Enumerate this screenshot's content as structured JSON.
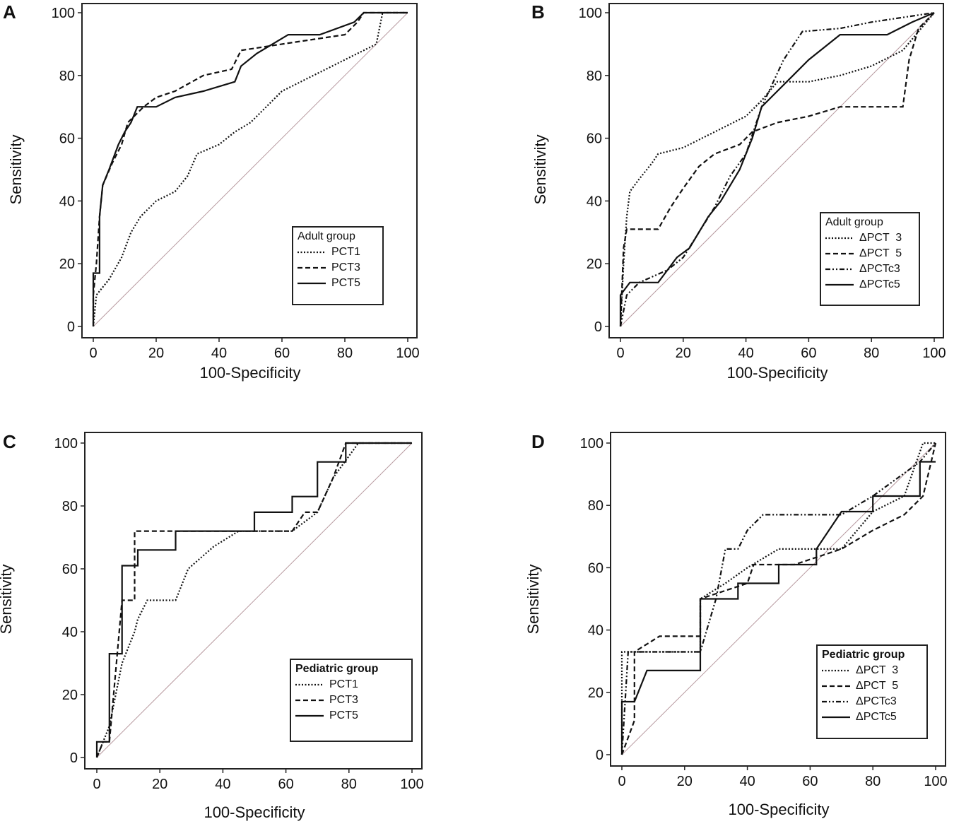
{
  "chart_data": [
    {
      "type": "line",
      "panel": "A",
      "xlabel": "100-Specificity",
      "ylabel": "Sensitivity",
      "xlim": [
        0,
        100
      ],
      "ylim": [
        0,
        100
      ],
      "xticks": [
        "0",
        "20",
        "40",
        "60",
        "80",
        "100"
      ],
      "yticks": [
        "0",
        "20",
        "40",
        "60",
        "80",
        "100"
      ],
      "legend_title": "Adult group",
      "legend_position": "bottom-right",
      "series": [
        {
          "name": "PCT1",
          "style": "dotted",
          "points": [
            [
              0,
              0
            ],
            [
              1,
              10
            ],
            [
              5,
              15
            ],
            [
              9,
              22
            ],
            [
              12,
              30
            ],
            [
              15,
              35
            ],
            [
              20,
              40
            ],
            [
              26,
              43
            ],
            [
              30,
              48
            ],
            [
              33,
              55
            ],
            [
              40,
              58
            ],
            [
              45,
              62
            ],
            [
              50,
              65
            ],
            [
              55,
              70
            ],
            [
              60,
              75
            ],
            [
              70,
              80
            ],
            [
              80,
              85
            ],
            [
              90,
              90
            ],
            [
              92,
              100
            ],
            [
              100,
              100
            ]
          ]
        },
        {
          "name": "PCT3",
          "style": "dashed",
          "points": [
            [
              0,
              0
            ],
            [
              0,
              10
            ],
            [
              1,
              20
            ],
            [
              2,
              35
            ],
            [
              3,
              45
            ],
            [
              6,
              52
            ],
            [
              9,
              58
            ],
            [
              11,
              65
            ],
            [
              16,
              70
            ],
            [
              20,
              73
            ],
            [
              26,
              75
            ],
            [
              35,
              80
            ],
            [
              44,
              82
            ],
            [
              47,
              88
            ],
            [
              60,
              90
            ],
            [
              80,
              93
            ],
            [
              84,
              97
            ],
            [
              86,
              100
            ],
            [
              100,
              100
            ]
          ]
        },
        {
          "name": "PCT5",
          "style": "solid",
          "points": [
            [
              0,
              0
            ],
            [
              0,
              17
            ],
            [
              2,
              17
            ],
            [
              2,
              35
            ],
            [
              3,
              45
            ],
            [
              5,
              50
            ],
            [
              8,
              58
            ],
            [
              10,
              62
            ],
            [
              12,
              65
            ],
            [
              14,
              70
            ],
            [
              20,
              70
            ],
            [
              26,
              73
            ],
            [
              35,
              75
            ],
            [
              45,
              78
            ],
            [
              47,
              83
            ],
            [
              52,
              87
            ],
            [
              57,
              90
            ],
            [
              62,
              93
            ],
            [
              72,
              93
            ],
            [
              83,
              97
            ],
            [
              86,
              100
            ],
            [
              100,
              100
            ]
          ]
        }
      ]
    },
    {
      "type": "line",
      "panel": "B",
      "xlabel": "100-Specificity",
      "ylabel": "Sensitivity",
      "xlim": [
        0,
        100
      ],
      "ylim": [
        0,
        100
      ],
      "xticks": [
        "0",
        "20",
        "40",
        "60",
        "80",
        "100"
      ],
      "yticks": [
        "0",
        "20",
        "40",
        "60",
        "80",
        "100"
      ],
      "legend_title": "Adult group",
      "legend_position": "bottom-right",
      "series": [
        {
          "name": "ΔPCT  3",
          "style": "dotted",
          "points": [
            [
              0,
              0
            ],
            [
              1,
              20
            ],
            [
              2,
              35
            ],
            [
              3,
              43
            ],
            [
              6,
              47
            ],
            [
              10,
              52
            ],
            [
              12,
              55
            ],
            [
              20,
              57
            ],
            [
              30,
              62
            ],
            [
              40,
              67
            ],
            [
              45,
              72
            ],
            [
              50,
              78
            ],
            [
              60,
              78
            ],
            [
              70,
              80
            ],
            [
              80,
              83
            ],
            [
              90,
              88
            ],
            [
              100,
              100
            ]
          ]
        },
        {
          "name": "ΔPCT  5",
          "style": "dashed",
          "points": [
            [
              0,
              0
            ],
            [
              1,
              25
            ],
            [
              2,
              31
            ],
            [
              12,
              31
            ],
            [
              16,
              38
            ],
            [
              20,
              44
            ],
            [
              25,
              51
            ],
            [
              30,
              55
            ],
            [
              38,
              58
            ],
            [
              42,
              62
            ],
            [
              50,
              65
            ],
            [
              60,
              67
            ],
            [
              70,
              70
            ],
            [
              90,
              70
            ],
            [
              92,
              85
            ],
            [
              95,
              95
            ],
            [
              100,
              100
            ]
          ]
        },
        {
          "name": "ΔPCTc3",
          "style": "dashdot",
          "points": [
            [
              0,
              0
            ],
            [
              2,
              10
            ],
            [
              6,
              14
            ],
            [
              15,
              18
            ],
            [
              20,
              22
            ],
            [
              25,
              30
            ],
            [
              30,
              38
            ],
            [
              35,
              48
            ],
            [
              40,
              55
            ],
            [
              45,
              70
            ],
            [
              52,
              85
            ],
            [
              58,
              94
            ],
            [
              70,
              95
            ],
            [
              80,
              97
            ],
            [
              100,
              100
            ]
          ]
        },
        {
          "name": "ΔPCTc5",
          "style": "solid",
          "points": [
            [
              0,
              0
            ],
            [
              0,
              10
            ],
            [
              3,
              14
            ],
            [
              12,
              14
            ],
            [
              18,
              22
            ],
            [
              22,
              25
            ],
            [
              28,
              35
            ],
            [
              32,
              40
            ],
            [
              38,
              50
            ],
            [
              42,
              60
            ],
            [
              45,
              70
            ],
            [
              50,
              75
            ],
            [
              55,
              80
            ],
            [
              60,
              85
            ],
            [
              70,
              93
            ],
            [
              85,
              93
            ],
            [
              93,
              97
            ],
            [
              100,
              100
            ]
          ]
        }
      ]
    },
    {
      "type": "line",
      "panel": "C",
      "xlabel": "100-Specificity",
      "ylabel": "Sensitivity",
      "xlim": [
        0,
        100
      ],
      "ylim": [
        0,
        100
      ],
      "xticks": [
        "0",
        "20",
        "40",
        "60",
        "80",
        "100"
      ],
      "yticks": [
        "0",
        "20",
        "40",
        "60",
        "80",
        "100"
      ],
      "legend_title": "Pediatric group",
      "legend_position": "bottom-right",
      "series": [
        {
          "name": "PCT1",
          "style": "dotted",
          "points": [
            [
              0,
              0
            ],
            [
              4,
              10
            ],
            [
              8,
              30
            ],
            [
              12,
              40
            ],
            [
              13,
              44
            ],
            [
              16,
              50
            ],
            [
              25,
              50
            ],
            [
              29,
              60
            ],
            [
              37,
              67
            ],
            [
              45,
              72
            ],
            [
              62,
              72
            ],
            [
              70,
              78
            ],
            [
              75,
              89
            ],
            [
              83,
              100
            ],
            [
              100,
              100
            ]
          ]
        },
        {
          "name": "PCT3",
          "style": "dashed",
          "points": [
            [
              0,
              0
            ],
            [
              2,
              5
            ],
            [
              4,
              5
            ],
            [
              8,
              50
            ],
            [
              12,
              50
            ],
            [
              12,
              72
            ],
            [
              62,
              72
            ],
            [
              66,
              78
            ],
            [
              70,
              78
            ],
            [
              75,
              89
            ],
            [
              79,
              100
            ],
            [
              100,
              100
            ]
          ]
        },
        {
          "name": "PCT5",
          "style": "solid",
          "points": [
            [
              0,
              0
            ],
            [
              0,
              5
            ],
            [
              4,
              5
            ],
            [
              4,
              33
            ],
            [
              8,
              33
            ],
            [
              8,
              61
            ],
            [
              13,
              61
            ],
            [
              13,
              66
            ],
            [
              25,
              66
            ],
            [
              25,
              72
            ],
            [
              50,
              72
            ],
            [
              50,
              78
            ],
            [
              62,
              78
            ],
            [
              62,
              83
            ],
            [
              70,
              83
            ],
            [
              70,
              94
            ],
            [
              79,
              94
            ],
            [
              79,
              100
            ],
            [
              100,
              100
            ]
          ]
        }
      ]
    },
    {
      "type": "line",
      "panel": "D",
      "xlabel": "100-Specificity",
      "ylabel": "Sensitivity",
      "xlim": [
        0,
        100
      ],
      "ylim": [
        0,
        100
      ],
      "xticks": [
        "0",
        "20",
        "40",
        "60",
        "80",
        "100"
      ],
      "yticks": [
        "0",
        "20",
        "40",
        "60",
        "80",
        "100"
      ],
      "legend_title": "Pediatric group",
      "legend_position": "bottom-right",
      "series": [
        {
          "name": "ΔPCT  3",
          "style": "dotted",
          "points": [
            [
              0,
              0
            ],
            [
              0,
              33
            ],
            [
              25,
              33
            ],
            [
              25,
              50
            ],
            [
              33,
              55
            ],
            [
              40,
              60
            ],
            [
              50,
              66
            ],
            [
              70,
              66
            ],
            [
              80,
              78
            ],
            [
              90,
              83
            ],
            [
              96,
              100
            ],
            [
              100,
              100
            ]
          ]
        },
        {
          "name": "ΔPCT  5",
          "style": "dashed",
          "points": [
            [
              0,
              0
            ],
            [
              4,
              11
            ],
            [
              4,
              33
            ],
            [
              12,
              38
            ],
            [
              25,
              38
            ],
            [
              25,
              50
            ],
            [
              40,
              55
            ],
            [
              42,
              61
            ],
            [
              55,
              61
            ],
            [
              70,
              66
            ],
            [
              80,
              72
            ],
            [
              90,
              77
            ],
            [
              96,
              83
            ],
            [
              100,
              100
            ]
          ]
        },
        {
          "name": "ΔPCTc3",
          "style": "dashdot",
          "points": [
            [
              0,
              0
            ],
            [
              2,
              33
            ],
            [
              25,
              33
            ],
            [
              30,
              50
            ],
            [
              33,
              66
            ],
            [
              37,
              66
            ],
            [
              40,
              72
            ],
            [
              45,
              77
            ],
            [
              70,
              77
            ],
            [
              80,
              83
            ],
            [
              95,
              94
            ],
            [
              100,
              100
            ]
          ]
        },
        {
          "name": "ΔPCTc5",
          "style": "solid",
          "points": [
            [
              0,
              0
            ],
            [
              0,
              17
            ],
            [
              4,
              17
            ],
            [
              8,
              27
            ],
            [
              25,
              27
            ],
            [
              25,
              50
            ],
            [
              37,
              50
            ],
            [
              37,
              55
            ],
            [
              50,
              55
            ],
            [
              50,
              61
            ],
            [
              62,
              61
            ],
            [
              62,
              66
            ],
            [
              66,
              72
            ],
            [
              70,
              78
            ],
            [
              80,
              78
            ],
            [
              80,
              83
            ],
            [
              95,
              83
            ],
            [
              95,
              94
            ],
            [
              100,
              94
            ]
          ]
        }
      ]
    }
  ]
}
